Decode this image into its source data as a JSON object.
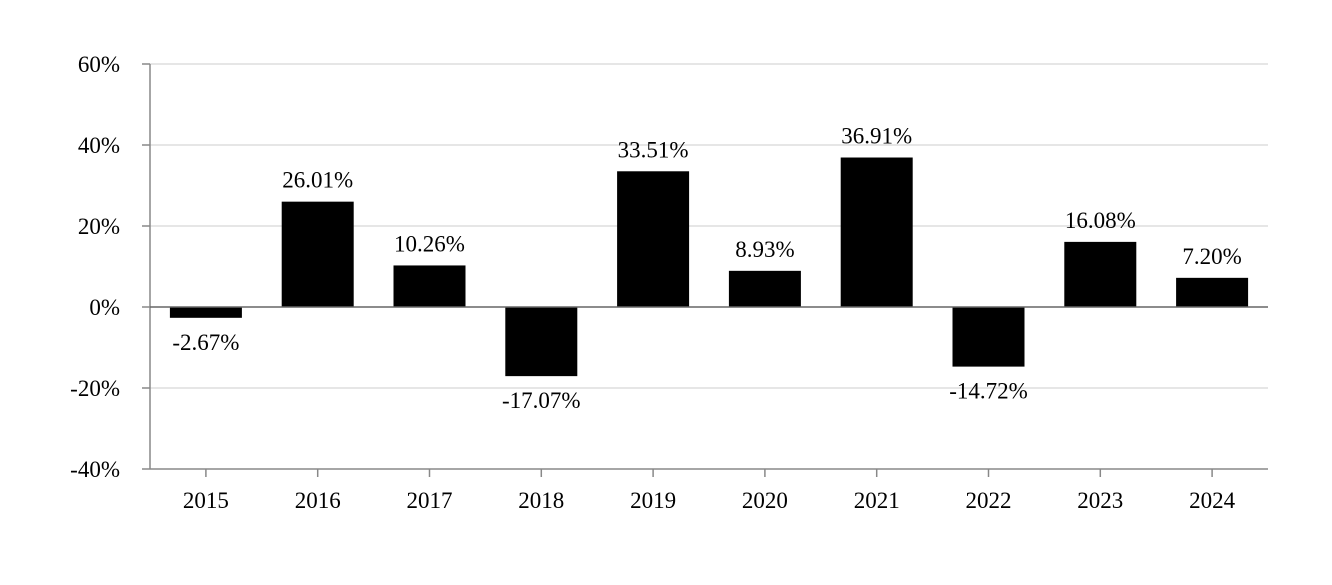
{
  "chart_data": {
    "type": "bar",
    "title": "",
    "xlabel": "",
    "ylabel": "",
    "categories": [
      "2015",
      "2016",
      "2017",
      "2018",
      "2019",
      "2020",
      "2021",
      "2022",
      "2023",
      "2024"
    ],
    "values": [
      -2.67,
      26.01,
      10.26,
      -17.07,
      33.51,
      8.93,
      36.91,
      -14.72,
      16.08,
      7.2
    ],
    "data_labels": [
      "-2.67%",
      "26.01%",
      "10.26%",
      "-17.07%",
      "33.51%",
      "8.93%",
      "36.91%",
      "-14.72%",
      "16.08%",
      "7.20%"
    ],
    "ylim": [
      -40,
      60
    ],
    "yticks": [
      60,
      40,
      20,
      0,
      -20,
      -40
    ],
    "ytick_labels": [
      "60%",
      "40%",
      "20%",
      "0%",
      "-20%",
      "-40%"
    ],
    "grid": true,
    "legend": "none",
    "colors": {
      "bar": "#000000",
      "grid": "#e6e6e6",
      "axis": "#888888",
      "zero_line": "#666666"
    }
  }
}
